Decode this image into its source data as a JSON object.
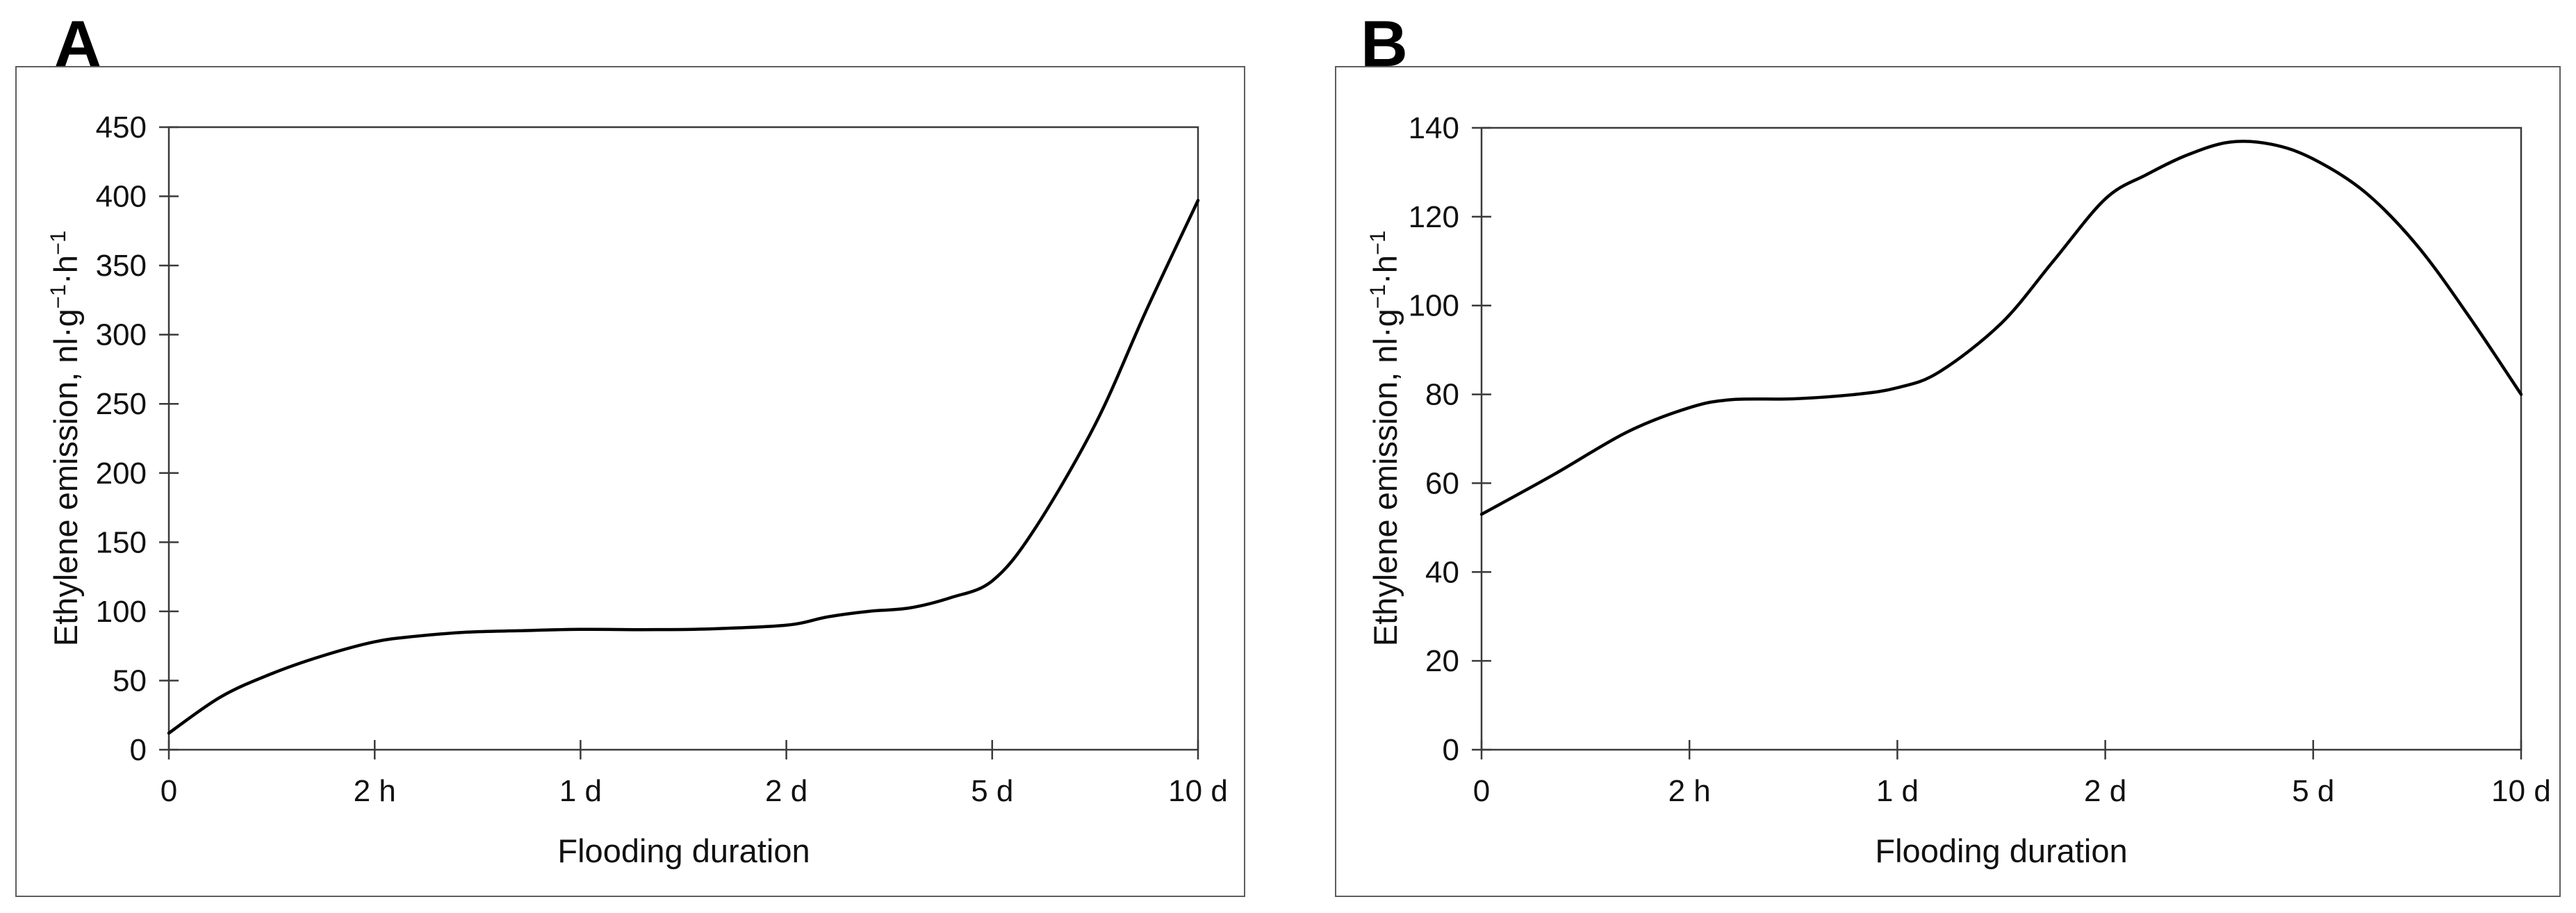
{
  "figure": {
    "background": "#ffffff",
    "text_color": "#111111",
    "panel_labels": [
      "A",
      "B"
    ]
  },
  "chart_data": [
    {
      "panel_label": "A",
      "type": "line",
      "title": "",
      "xlabel": "Flooding duration",
      "ylabel": "Ethylene emission, nl·g⁻¹·h⁻¹",
      "ylabel_parts": [
        {
          "text": "Ethylene emission, nl·g"
        },
        {
          "sup": "−1"
        },
        {
          "text": "·h"
        },
        {
          "sup": "−1"
        }
      ],
      "x_categories": [
        "0",
        "2 h",
        "1 d",
        "2 d",
        "5 d",
        "10 d"
      ],
      "ylim": [
        0,
        450
      ],
      "yticks": [
        0,
        50,
        100,
        150,
        200,
        250,
        300,
        350,
        400,
        450
      ],
      "grid": false,
      "legend_position": "none",
      "line_color": "#000000",
      "axis_color": "#3a3a3a",
      "series": [
        {
          "name": "Ethylene emission",
          "points": [
            [
              0,
              12
            ],
            [
              0.25,
              38
            ],
            [
              0.5,
              55
            ],
            [
              0.75,
              68
            ],
            [
              1,
              78
            ],
            [
              1.2,
              82
            ],
            [
              1.45,
              85
            ],
            [
              1.7,
              86
            ],
            [
              2,
              87
            ],
            [
              2.3,
              86.8
            ],
            [
              2.6,
              87.2
            ],
            [
              3,
              90
            ],
            [
              3.2,
              96
            ],
            [
              3.4,
              100
            ],
            [
              3.6,
              102.5
            ],
            [
              3.8,
              110
            ],
            [
              4,
              122
            ],
            [
              4.2,
              158
            ],
            [
              4.5,
              235
            ],
            [
              4.75,
              318
            ],
            [
              5,
              397
            ]
          ]
        }
      ]
    },
    {
      "panel_label": "B",
      "type": "line",
      "title": "",
      "xlabel": "Flooding duration",
      "ylabel": "Ethylene emission, nl·g⁻¹·h⁻¹",
      "ylabel_parts": [
        {
          "text": "Ethylene emission, nl·g"
        },
        {
          "sup": "−1"
        },
        {
          "text": "·h"
        },
        {
          "sup": "−1"
        }
      ],
      "x_categories": [
        "0",
        "2 h",
        "1 d",
        "2 d",
        "5 d",
        "10 d"
      ],
      "ylim": [
        0,
        140
      ],
      "yticks": [
        0,
        20,
        40,
        60,
        80,
        100,
        120,
        140
      ],
      "grid": false,
      "legend_position": "none",
      "line_color": "#000000",
      "axis_color": "#3a3a3a",
      "series": [
        {
          "name": "Ethylene emission",
          "points": [
            [
              0,
              53
            ],
            [
              0.35,
              62
            ],
            [
              0.7,
              71.5
            ],
            [
              1,
              77
            ],
            [
              1.2,
              78.8
            ],
            [
              1.5,
              79
            ],
            [
              1.8,
              80
            ],
            [
              2,
              81.5
            ],
            [
              2.2,
              85
            ],
            [
              2.5,
              96
            ],
            [
              2.75,
              110
            ],
            [
              3,
              124
            ],
            [
              3.2,
              129.5
            ],
            [
              3.4,
              134
            ],
            [
              3.6,
              136.8
            ],
            [
              3.8,
              136.3
            ],
            [
              4,
              133
            ],
            [
              4.25,
              125.5
            ],
            [
              4.5,
              113.5
            ],
            [
              4.75,
              97.5
            ],
            [
              5,
              80
            ]
          ]
        }
      ]
    }
  ]
}
